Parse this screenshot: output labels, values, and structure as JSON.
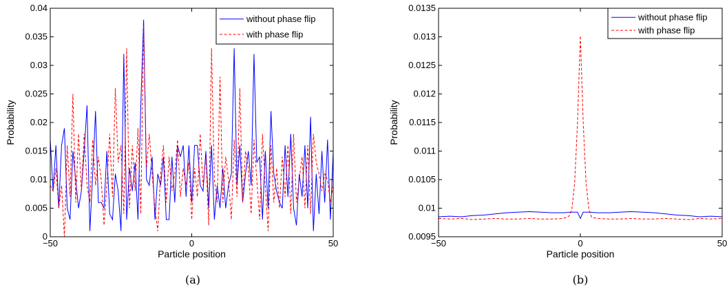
{
  "colors": {
    "series_without": "#0000ff",
    "series_with": "#ff0000",
    "axis": "#000000"
  },
  "chart_data": [
    {
      "type": "line",
      "caption": "(a)",
      "xlabel": "Particle position",
      "ylabel": "Probability",
      "xlim": [
        -50,
        50
      ],
      "ylim": [
        0,
        0.04
      ],
      "xticks": [
        -50,
        0,
        50
      ],
      "xtick_labels": [
        "−50",
        "0",
        "50"
      ],
      "yticks": [
        0,
        0.005,
        0.01,
        0.015,
        0.02,
        0.025,
        0.03,
        0.035,
        0.04
      ],
      "ytick_labels": [
        "0",
        "0.005",
        "0.01",
        "0.015",
        "0.02",
        "0.025",
        "0.03",
        "0.035",
        "0.04"
      ],
      "grid": false,
      "legend_position": "top-right",
      "series": [
        {
          "name": "without phase flip",
          "style": "solid",
          "x": [
            -50,
            -49,
            -48,
            -47,
            -46,
            -45,
            -44,
            -43,
            -42,
            -41,
            -40,
            -39,
            -38,
            -37,
            -36,
            -35,
            -34,
            -33,
            -32,
            -31,
            -30,
            -29,
            -28,
            -27,
            -26,
            -25,
            -24,
            -23,
            -22,
            -21,
            -20,
            -19,
            -18,
            -17,
            -16,
            -15,
            -14,
            -13,
            -12,
            -11,
            -10,
            -9,
            -8,
            -7,
            -6,
            -5,
            -4,
            -3,
            -2,
            -1,
            0,
            1,
            2,
            3,
            4,
            5,
            6,
            7,
            8,
            9,
            10,
            11,
            12,
            13,
            14,
            15,
            16,
            17,
            18,
            19,
            20,
            21,
            22,
            23,
            24,
            25,
            26,
            27,
            28,
            29,
            30,
            31,
            32,
            33,
            34,
            35,
            36,
            37,
            38,
            39,
            40,
            41,
            42,
            43,
            44,
            45,
            46,
            47,
            48,
            49,
            50
          ],
          "y": [
            0.017,
            0.008,
            0.016,
            0.005,
            0.016,
            0.019,
            0.005,
            0.003,
            0.015,
            0.01,
            0.005,
            0.008,
            0.015,
            0.023,
            0.001,
            0.011,
            0.022,
            0.006,
            0.006,
            0.005,
            0.015,
            0.004,
            0.003,
            0.011,
            0.008,
            0.001,
            0.032,
            0.003,
            0.012,
            0.008,
            0.013,
            0.003,
            0.023,
            0.038,
            0.01,
            0.009,
            0.014,
            0.003,
            0.011,
            0.009,
            0.014,
            0.003,
            0.003,
            0.014,
            0.006,
            0.016,
            0.014,
            0.016,
            0.007,
            0.016,
            0.006,
            0.016,
            0.016,
            0.009,
            0.008,
            0.015,
            0.005,
            0.016,
            0.003,
            0.009,
            0.005,
            0.012,
            0.005,
            0.009,
            0.011,
            0.033,
            0.009,
            0.016,
            0.006,
            0.011,
            0.015,
            0.009,
            0.032,
            0.013,
            0.014,
            0.003,
            0.015,
            0.005,
            0.022,
            0.011,
            0.008,
            0.006,
            0.005,
            0.016,
            0.007,
            0.018,
            0.005,
            0.002,
            0.011,
            0.007,
            0.016,
            0.005,
            0.021,
            0.001,
            0.011,
            0.004,
            0.015,
            0.006,
            0.017,
            0.003,
            0.015
          ]
        },
        {
          "name": "with phase flip",
          "style": "dashed",
          "x": [
            -50,
            -49,
            -48,
            -47,
            -46,
            -45,
            -44,
            -43,
            -42,
            -41,
            -40,
            -39,
            -38,
            -37,
            -36,
            -35,
            -34,
            -33,
            -32,
            -31,
            -30,
            -29,
            -28,
            -27,
            -26,
            -25,
            -24,
            -23,
            -22,
            -21,
            -20,
            -19,
            -18,
            -17,
            -16,
            -15,
            -14,
            -13,
            -12,
            -11,
            -10,
            -9,
            -8,
            -7,
            -6,
            -5,
            -4,
            -3,
            -2,
            -1,
            0,
            1,
            2,
            3,
            4,
            5,
            6,
            7,
            8,
            9,
            10,
            11,
            12,
            13,
            14,
            15,
            16,
            17,
            18,
            19,
            20,
            21,
            22,
            23,
            24,
            25,
            26,
            27,
            28,
            29,
            30,
            31,
            32,
            33,
            34,
            35,
            36,
            37,
            38,
            39,
            40,
            41,
            42,
            43,
            44,
            45,
            46,
            47,
            48,
            49,
            50
          ],
          "y": [
            0.009,
            0.008,
            0.012,
            0.005,
            0.009,
            0.0,
            0.016,
            0.007,
            0.025,
            0.006,
            0.018,
            0.008,
            0.018,
            0.009,
            0.006,
            0.017,
            0.009,
            0.014,
            0.01,
            0.002,
            0.009,
            0.018,
            0.007,
            0.026,
            0.013,
            0.016,
            0.004,
            0.033,
            0.005,
            0.016,
            0.008,
            0.019,
            0.004,
            0.037,
            0.012,
            0.018,
            0.011,
            0.005,
            0.001,
            0.011,
            0.016,
            0.006,
            0.014,
            0.008,
            0.011,
            0.017,
            0.007,
            0.012,
            0.009,
            0.013,
            0.003,
            0.012,
            0.007,
            0.018,
            0.009,
            0.014,
            0.002,
            0.033,
            0.01,
            0.006,
            0.028,
            0.006,
            0.014,
            0.01,
            0.003,
            0.017,
            0.007,
            0.026,
            0.006,
            0.015,
            0.012,
            0.004,
            0.017,
            0.01,
            0.003,
            0.018,
            0.009,
            0.001,
            0.016,
            0.006,
            0.012,
            0.005,
            0.014,
            0.007,
            0.016,
            0.004,
            0.018,
            0.006,
            0.01,
            0.014,
            0.005,
            0.016,
            0.004,
            0.018,
            0.013,
            0.011,
            0.008,
            0.011,
            0.01,
            0.006,
            0.009
          ]
        }
      ]
    },
    {
      "type": "line",
      "caption": "(b)",
      "xlabel": "Particle position",
      "ylabel": "Probability",
      "xlim": [
        -50,
        50
      ],
      "ylim": [
        0.0095,
        0.0135
      ],
      "xticks": [
        -50,
        0,
        50
      ],
      "xtick_labels": [
        "−50",
        "0",
        "50"
      ],
      "yticks": [
        0.0095,
        0.01,
        0.0105,
        0.011,
        0.0115,
        0.012,
        0.0125,
        0.013,
        0.0135
      ],
      "ytick_labels": [
        "0.0095",
        "0.01",
        "0.0105",
        "0.011",
        "0.0115",
        "0.012",
        "0.0125",
        "0.013",
        "0.0135"
      ],
      "grid": false,
      "legend_position": "top-right",
      "series": [
        {
          "name": "without phase flip",
          "style": "solid",
          "x": [
            -50,
            -46,
            -42,
            -38,
            -34,
            -30,
            -26,
            -22,
            -18,
            -14,
            -10,
            -6,
            -3,
            -1,
            0,
            1,
            3,
            6,
            10,
            14,
            18,
            22,
            26,
            30,
            34,
            38,
            42,
            46,
            50
          ],
          "y": [
            0.00985,
            0.00986,
            0.00985,
            0.00987,
            0.00988,
            0.0099,
            0.00992,
            0.00993,
            0.00994,
            0.00993,
            0.00992,
            0.00992,
            0.00993,
            0.00993,
            0.00982,
            0.00993,
            0.00993,
            0.00992,
            0.00992,
            0.00993,
            0.00994,
            0.00993,
            0.00992,
            0.0099,
            0.00988,
            0.00987,
            0.00985,
            0.00986,
            0.00985
          ]
        },
        {
          "name": "with phase flip",
          "style": "dashed",
          "x": [
            -50,
            -46,
            -42,
            -38,
            -34,
            -30,
            -26,
            -22,
            -18,
            -14,
            -10,
            -6,
            -4,
            -3,
            -2,
            -1,
            0,
            1,
            2,
            3,
            4,
            6,
            10,
            14,
            18,
            22,
            26,
            30,
            34,
            38,
            42,
            46,
            50
          ],
          "y": [
            0.00982,
            0.00981,
            0.00982,
            0.0098,
            0.00981,
            0.00982,
            0.00981,
            0.00981,
            0.00982,
            0.00981,
            0.00981,
            0.00982,
            0.00986,
            0.00998,
            0.01045,
            0.0115,
            0.01302,
            0.0115,
            0.01045,
            0.00998,
            0.00984,
            0.00982,
            0.00981,
            0.00981,
            0.00982,
            0.00981,
            0.00981,
            0.00982,
            0.00981,
            0.0098,
            0.00982,
            0.00981,
            0.00982
          ]
        }
      ]
    }
  ]
}
